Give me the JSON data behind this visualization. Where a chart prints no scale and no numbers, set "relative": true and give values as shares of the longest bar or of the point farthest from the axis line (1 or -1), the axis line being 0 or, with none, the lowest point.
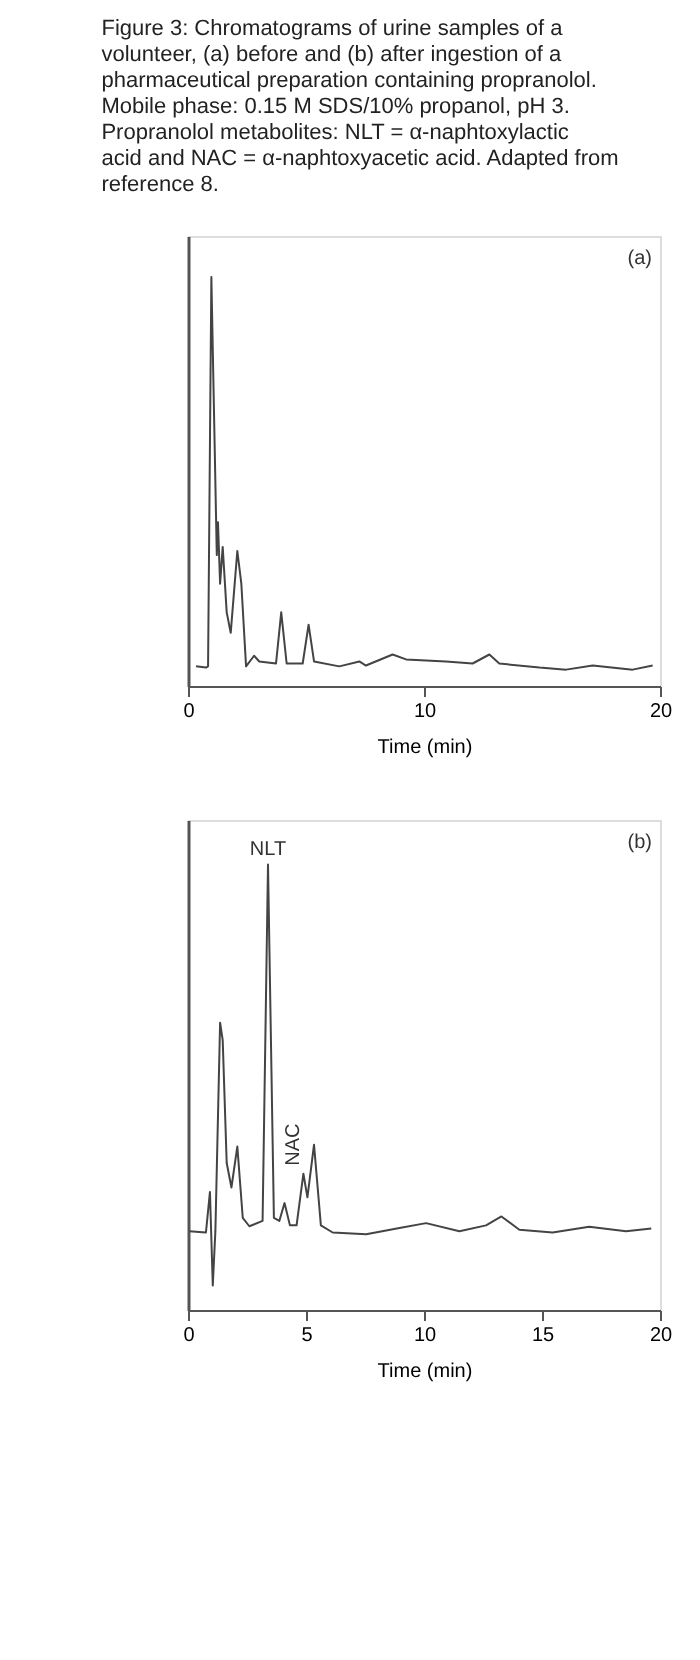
{
  "chart_data": [
    {
      "type": "line",
      "title": "Figure 3: Chromatograms of urine samples of a volunteer, (a) before and (b) after ingestion of a pharmaceutical preparation containing propranolol. Mobile phase: 0.15 M SDS/10% propanol, pH 3. Propranolol metabolites: NLT = α-naphtoxylactic acid and NAC = α-naphtoxyacetic acid. Adapted from reference 8.",
      "xlabel": "Time (min)",
      "xlim": [
        0,
        20
      ],
      "xticks": [
        0,
        10,
        20
      ],
      "relative": true,
      "grid": false,
      "legend": false,
      "marker": "none",
      "line_style": "solid",
      "x": [
        0.34,
        0.76,
        0.85,
        0.99,
        1.22,
        1.27,
        1.36,
        1.47,
        1.64,
        1.81,
        2.09,
        2.26,
        2.46,
        2.8,
        3.02,
        3.73,
        3.95,
        4.18,
        4.86,
        5.11,
        5.34,
        6.41,
        7.26,
        7.54,
        8.67,
        9.24,
        10.93,
        12.06,
        12.77,
        13.19,
        14.89,
        16.02,
        17.15,
        18.84,
        19.69
      ],
      "series": [
        {
          "color": "#444444",
          "values": [
            0.048,
            0.045,
            0.048,
            1.0,
            0.32,
            0.4,
            0.25,
            0.34,
            0.18,
            0.13,
            0.33,
            0.25,
            0.048,
            0.074,
            0.06,
            0.055,
            0.18,
            0.055,
            0.055,
            0.15,
            0.06,
            0.048,
            0.06,
            0.05,
            0.077,
            0.065,
            0.06,
            0.055,
            0.077,
            0.055,
            0.045,
            0.04,
            0.05,
            0.04,
            0.05
          ]
        }
      ],
      "annotations": [
        "(a)"
      ]
    },
    {
      "type": "line",
      "xlabel": "Time (min)",
      "xlim": [
        0,
        20
      ],
      "xticks": [
        0,
        5,
        10,
        15,
        20
      ],
      "relative": true,
      "grid": false,
      "legend": false,
      "marker": "none",
      "line_style": "solid",
      "x": [
        0.06,
        0.76,
        0.93,
        1.05,
        1.16,
        1.36,
        1.47,
        1.64,
        1.84,
        2.09,
        2.32,
        2.6,
        3.16,
        3.39,
        3.64,
        3.87,
        4.09,
        4.32,
        4.6,
        4.89,
        5.06,
        5.34,
        5.63,
        6.13,
        7.55,
        8.96,
        10.09,
        11.5,
        12.63,
        13.28,
        14.04,
        15.45,
        17.0,
        18.56,
        19.63
      ],
      "series": [
        {
          "color": "#444444",
          "values": [
            0.177,
            0.174,
            0.265,
            0.055,
            0.177,
            0.645,
            0.606,
            0.33,
            0.275,
            0.367,
            0.207,
            0.188,
            0.2,
            1.0,
            0.207,
            0.2,
            0.24,
            0.19,
            0.19,
            0.306,
            0.253,
            0.371,
            0.19,
            0.174,
            0.17,
            0.184,
            0.195,
            0.177,
            0.19,
            0.21,
            0.18,
            0.174,
            0.187,
            0.177,
            0.183
          ]
        }
      ],
      "annotations": [
        "(b)",
        {
          "text": "NLT",
          "x": 3.39,
          "y": 1.0
        },
        {
          "text": "NAC",
          "x": 4.89,
          "y": 0.306
        }
      ]
    }
  ]
}
